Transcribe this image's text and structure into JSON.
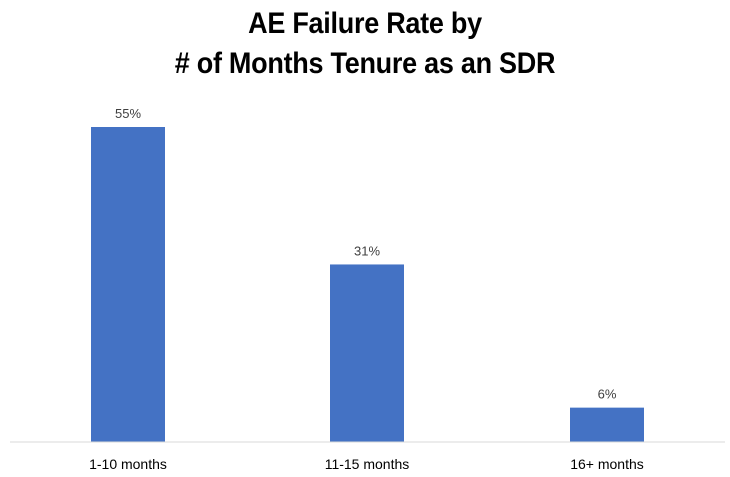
{
  "chart_data": {
    "type": "bar",
    "title_lines": [
      "AE Failure Rate by",
      "# of Months Tenure as an SDR"
    ],
    "categories": [
      "1-10 months",
      "11-15 months",
      "16+ months"
    ],
    "values": [
      55,
      31,
      6
    ],
    "data_labels": [
      "55%",
      "31%",
      "6%"
    ],
    "ylim": [
      0,
      55
    ],
    "grid": false,
    "legend": "none",
    "bar_color": "#4472C4",
    "axis_color": "#D9D9D9"
  }
}
